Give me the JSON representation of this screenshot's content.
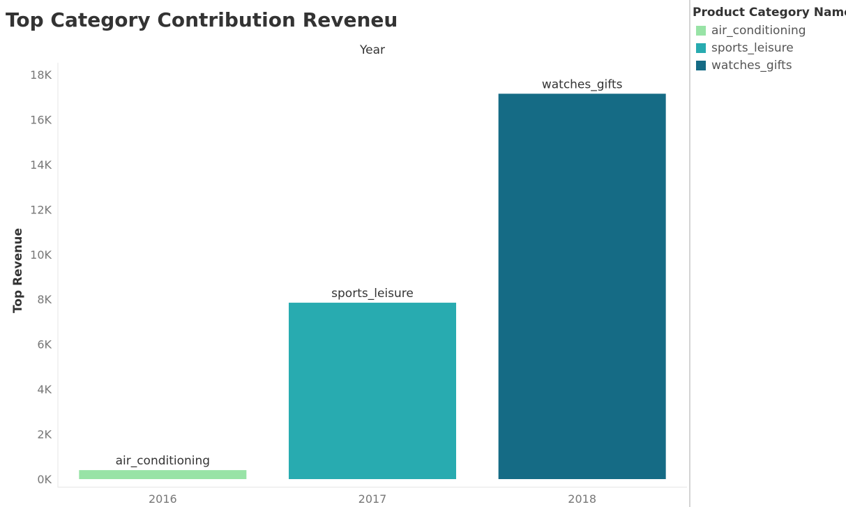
{
  "title": "Top Category Contribution Reveneu",
  "legend": {
    "title": "Product Category Name",
    "items": [
      {
        "label": "air_conditioning",
        "color": "#98e3a6"
      },
      {
        "label": "sports_leisure",
        "color": "#28abb0"
      },
      {
        "label": "watches_gifts",
        "color": "#156b85"
      }
    ]
  },
  "chart_data": {
    "type": "bar",
    "title": "Top Category Contribution Reveneu",
    "xlabel": "Year",
    "ylabel": "Top Revenue",
    "categories": [
      "2016",
      "2017",
      "2018"
    ],
    "values": [
      400,
      7850,
      17150
    ],
    "bar_labels": [
      "air_conditioning",
      "sports_leisure",
      "watches_gifts"
    ],
    "bar_colors": [
      "#98e3a6",
      "#28abb0",
      "#156b85"
    ],
    "ylim": [
      0,
      18000
    ],
    "yticks": [
      0,
      2000,
      4000,
      6000,
      8000,
      10000,
      12000,
      14000,
      16000,
      18000
    ],
    "ytick_labels": [
      "0K",
      "2K",
      "4K",
      "6K",
      "8K",
      "10K",
      "12K",
      "14K",
      "16K",
      "18K"
    ],
    "xlabel_position": "top",
    "grid": false,
    "legend_position": "right"
  }
}
